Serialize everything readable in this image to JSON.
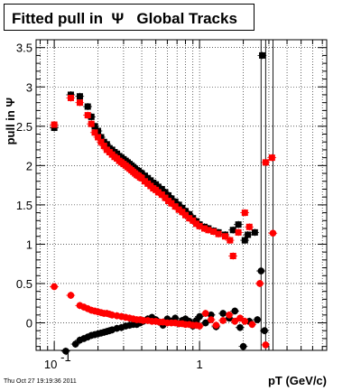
{
  "title": "Fitted pull in  Ψ   Global Tracks",
  "footer": "Thu Oct 27 19:19:36 2011",
  "chart_data": {
    "type": "scatter",
    "x_scale": "log",
    "xlim": [
      0.075,
      7.5
    ],
    "ylim": [
      -0.35,
      3.6
    ],
    "xlabel": "pT (GeV/c)",
    "ylabel": "pull in Ψ",
    "grid": true,
    "y_ticks": [
      {
        "value": 0,
        "label": "0"
      },
      {
        "value": 0.5,
        "label": "0.5"
      },
      {
        "value": 1,
        "label": "1"
      },
      {
        "value": 1.5,
        "label": "1.5"
      },
      {
        "value": 2,
        "label": "2"
      },
      {
        "value": 2.5,
        "label": "2.5"
      },
      {
        "value": 3,
        "label": "3"
      },
      {
        "value": 3.5,
        "label": "3.5"
      }
    ],
    "x_tick_labels": [
      {
        "value": 0.1,
        "label": "10",
        "exponent": "-1"
      },
      {
        "value": 1,
        "label": "1",
        "exponent": ""
      }
    ],
    "series": [
      {
        "marker": "square",
        "color": "#000000",
        "points": [
          [
            0.1,
            2.48
          ],
          [
            0.13,
            2.9
          ],
          [
            0.15,
            2.88
          ],
          [
            0.17,
            2.75
          ],
          [
            0.18,
            2.62
          ],
          [
            0.19,
            2.5
          ],
          [
            0.2,
            2.44
          ],
          [
            0.21,
            2.36
          ],
          [
            0.22,
            2.3
          ],
          [
            0.23,
            2.27
          ],
          [
            0.24,
            2.22
          ],
          [
            0.25,
            2.2
          ],
          [
            0.26,
            2.17
          ],
          [
            0.27,
            2.15
          ],
          [
            0.28,
            2.12
          ],
          [
            0.29,
            2.1
          ],
          [
            0.3,
            2.08
          ],
          [
            0.31,
            2.06
          ],
          [
            0.32,
            2.04
          ],
          [
            0.33,
            2.02
          ],
          [
            0.34,
            2.0
          ],
          [
            0.35,
            1.98
          ],
          [
            0.36,
            1.96
          ],
          [
            0.37,
            1.94
          ],
          [
            0.38,
            1.93
          ],
          [
            0.39,
            1.91
          ],
          [
            0.4,
            1.9
          ],
          [
            0.42,
            1.87
          ],
          [
            0.44,
            1.84
          ],
          [
            0.46,
            1.81
          ],
          [
            0.48,
            1.78
          ],
          [
            0.5,
            1.76
          ],
          [
            0.52,
            1.73
          ],
          [
            0.55,
            1.7
          ],
          [
            0.58,
            1.66
          ],
          [
            0.61,
            1.62
          ],
          [
            0.64,
            1.58
          ],
          [
            0.68,
            1.54
          ],
          [
            0.72,
            1.5
          ],
          [
            0.76,
            1.46
          ],
          [
            0.8,
            1.42
          ],
          [
            0.85,
            1.38
          ],
          [
            0.9,
            1.33
          ],
          [
            0.95,
            1.29
          ],
          [
            1.0,
            1.25
          ],
          [
            1.08,
            1.22
          ],
          [
            1.15,
            1.2
          ],
          [
            1.25,
            1.17
          ],
          [
            1.35,
            1.15
          ],
          [
            1.5,
            1.12
          ],
          [
            1.7,
            1.18
          ],
          [
            1.85,
            1.25
          ],
          [
            2.05,
            1.05
          ],
          [
            2.15,
            1.12
          ],
          [
            2.4,
            1.15
          ],
          [
            2.7,
            3.4
          ]
        ]
      },
      {
        "marker": "square",
        "color": "#ff0000",
        "points": [
          [
            0.1,
            2.52
          ],
          [
            0.13,
            2.86
          ],
          [
            0.15,
            2.8
          ],
          [
            0.17,
            2.64
          ],
          [
            0.18,
            2.53
          ],
          [
            0.19,
            2.42
          ],
          [
            0.2,
            2.36
          ],
          [
            0.21,
            2.3
          ],
          [
            0.22,
            2.25
          ],
          [
            0.23,
            2.2
          ],
          [
            0.24,
            2.17
          ],
          [
            0.25,
            2.14
          ],
          [
            0.26,
            2.11
          ],
          [
            0.27,
            2.09
          ],
          [
            0.28,
            2.06
          ],
          [
            0.29,
            2.04
          ],
          [
            0.3,
            2.02
          ],
          [
            0.31,
            2.0
          ],
          [
            0.32,
            1.98
          ],
          [
            0.33,
            1.96
          ],
          [
            0.34,
            1.94
          ],
          [
            0.35,
            1.92
          ],
          [
            0.36,
            1.9
          ],
          [
            0.37,
            1.88
          ],
          [
            0.38,
            1.87
          ],
          [
            0.39,
            1.85
          ],
          [
            0.4,
            1.84
          ],
          [
            0.42,
            1.8
          ],
          [
            0.44,
            1.77
          ],
          [
            0.46,
            1.74
          ],
          [
            0.48,
            1.71
          ],
          [
            0.5,
            1.69
          ],
          [
            0.52,
            1.66
          ],
          [
            0.55,
            1.63
          ],
          [
            0.58,
            1.59
          ],
          [
            0.61,
            1.55
          ],
          [
            0.64,
            1.52
          ],
          [
            0.68,
            1.48
          ],
          [
            0.72,
            1.44
          ],
          [
            0.76,
            1.41
          ],
          [
            0.8,
            1.37
          ],
          [
            0.85,
            1.33
          ],
          [
            0.9,
            1.3
          ],
          [
            0.95,
            1.26
          ],
          [
            1.0,
            1.23
          ],
          [
            1.08,
            1.2
          ],
          [
            1.15,
            1.18
          ],
          [
            1.25,
            1.16
          ],
          [
            1.35,
            1.13
          ],
          [
            1.5,
            1.1
          ],
          [
            1.62,
            1.05
          ],
          [
            1.7,
            0.85
          ],
          [
            1.85,
            1.15
          ],
          [
            2.05,
            1.4
          ],
          [
            2.2,
            1.22
          ],
          [
            2.85,
            2.04
          ],
          [
            3.15,
            2.1
          ]
        ]
      },
      {
        "marker": "circle",
        "color": "#000000",
        "points": [
          [
            0.12,
            -0.36
          ],
          [
            0.14,
            -0.27
          ],
          [
            0.15,
            -0.22
          ],
          [
            0.16,
            -0.2
          ],
          [
            0.17,
            -0.18
          ],
          [
            0.18,
            -0.16
          ],
          [
            0.19,
            -0.15
          ],
          [
            0.2,
            -0.14
          ],
          [
            0.21,
            -0.13
          ],
          [
            0.22,
            -0.12
          ],
          [
            0.23,
            -0.11
          ],
          [
            0.24,
            -0.1
          ],
          [
            0.25,
            -0.09
          ],
          [
            0.27,
            -0.07
          ],
          [
            0.29,
            -0.06
          ],
          [
            0.31,
            -0.04
          ],
          [
            0.33,
            -0.03
          ],
          [
            0.35,
            -0.02
          ],
          [
            0.37,
            -0.02
          ],
          [
            0.39,
            0.0
          ],
          [
            0.41,
            0.02
          ],
          [
            0.44,
            0.05
          ],
          [
            0.47,
            0.07
          ],
          [
            0.5,
            0.04
          ],
          [
            0.53,
            0.01
          ],
          [
            0.56,
            -0.03
          ],
          [
            0.6,
            0.05
          ],
          [
            0.64,
            0.02
          ],
          [
            0.68,
            0.06
          ],
          [
            0.72,
            -0.01
          ],
          [
            0.76,
            0.03
          ],
          [
            0.8,
            0.05
          ],
          [
            0.85,
            0.02
          ],
          [
            0.9,
            -0.04
          ],
          [
            0.95,
            0.03
          ],
          [
            1.0,
            0.08
          ],
          [
            1.1,
            0.0
          ],
          [
            1.2,
            0.1
          ],
          [
            1.3,
            -0.05
          ],
          [
            1.45,
            0.12
          ],
          [
            1.6,
            0.06
          ],
          [
            1.75,
            0.15
          ],
          [
            1.9,
            -0.06
          ],
          [
            2.0,
            -0.3
          ],
          [
            2.2,
            0.02
          ],
          [
            2.5,
            0.04
          ],
          [
            2.65,
            0.66
          ],
          [
            2.8,
            -0.1
          ]
        ]
      },
      {
        "marker": "circle",
        "color": "#ff0000",
        "points": [
          [
            0.1,
            0.46
          ],
          [
            0.13,
            0.35
          ],
          [
            0.15,
            0.22
          ],
          [
            0.16,
            0.2
          ],
          [
            0.17,
            0.18
          ],
          [
            0.18,
            0.16
          ],
          [
            0.19,
            0.15
          ],
          [
            0.2,
            0.14
          ],
          [
            0.21,
            0.13
          ],
          [
            0.22,
            0.12
          ],
          [
            0.23,
            0.12
          ],
          [
            0.24,
            0.11
          ],
          [
            0.25,
            0.1
          ],
          [
            0.27,
            0.09
          ],
          [
            0.29,
            0.08
          ],
          [
            0.31,
            0.07
          ],
          [
            0.33,
            0.06
          ],
          [
            0.35,
            0.05
          ],
          [
            0.37,
            0.04
          ],
          [
            0.39,
            0.04
          ],
          [
            0.41,
            0.03
          ],
          [
            0.44,
            0.03
          ],
          [
            0.47,
            0.02
          ],
          [
            0.5,
            0.02
          ],
          [
            0.53,
            0.01
          ],
          [
            0.56,
            0.01
          ],
          [
            0.6,
            0.0
          ],
          [
            0.64,
            0.0
          ],
          [
            0.68,
            0.0
          ],
          [
            0.72,
            -0.01
          ],
          [
            0.76,
            -0.01
          ],
          [
            0.8,
            -0.02
          ],
          [
            0.85,
            -0.02
          ],
          [
            0.9,
            -0.03
          ],
          [
            0.95,
            -0.03
          ],
          [
            1.0,
            -0.04
          ],
          [
            1.1,
            0.12
          ],
          [
            1.2,
            0.04
          ],
          [
            1.3,
            -0.03
          ],
          [
            1.45,
            0.03
          ],
          [
            1.6,
            0.1
          ],
          [
            1.75,
            0.02
          ],
          [
            1.9,
            0.06
          ],
          [
            2.05,
            0.02
          ],
          [
            2.3,
            -0.02
          ],
          [
            2.6,
            0.5
          ],
          [
            2.85,
            -0.28
          ],
          [
            3.2,
            1.14
          ]
        ]
      }
    ]
  }
}
